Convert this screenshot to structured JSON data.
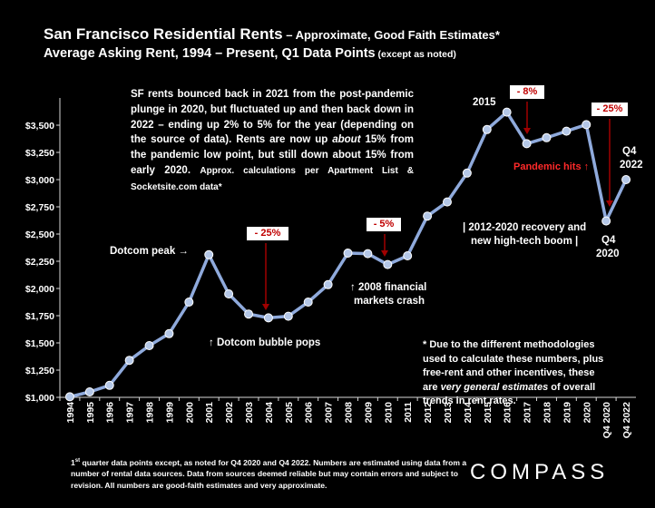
{
  "title": {
    "main": "San Francisco Residential Rents",
    "main_suffix": " – Approximate, Good Faith Estimates*",
    "second": "Average Asking Rent, 1994 – Present, Q1 Data Points",
    "second_note": " (except as noted)"
  },
  "chart_data": {
    "type": "line",
    "categories": [
      "1994",
      "1995",
      "1996",
      "1997",
      "1998",
      "1999",
      "2000",
      "2001",
      "2002",
      "2003",
      "2004",
      "2005",
      "2006",
      "2007",
      "2008",
      "2009",
      "2010",
      "2011",
      "2012",
      "2013",
      "2014",
      "2015",
      "2016",
      "2017",
      "2018",
      "2019",
      "2020",
      "Q4 2020",
      "Q4 2022"
    ],
    "values": [
      1005,
      1050,
      1110,
      1340,
      1475,
      1585,
      1875,
      2310,
      1950,
      1765,
      1730,
      1745,
      1875,
      2035,
      2325,
      2320,
      2220,
      2300,
      2665,
      2795,
      3060,
      3460,
      3620,
      3330,
      3385,
      3445,
      3505,
      2620,
      3000
    ],
    "ylim": [
      1000,
      3750
    ],
    "y_ticks": [
      "$1,000",
      "$1,250",
      "$1,500",
      "$1,750",
      "$2,000",
      "$2,250",
      "$2,500",
      "$2,750",
      "$3,000",
      "$3,250",
      "$3,500"
    ],
    "line_color": "#8faadc",
    "marker_color": "#b4c7e7"
  },
  "annotations": {
    "dotcom_peak": "Dotcom peak →",
    "dotcom_pops": "↑ Dotcom bubble pops",
    "financial_crash_1": "↑ 2008 financial",
    "financial_crash_2": "markets crash",
    "recovery_1": "| 2012-2020 recovery and",
    "recovery_2": "new high-tech boom |",
    "label_2015": "2015",
    "pandemic": "Pandemic hits ↑",
    "q4_2022_a": "Q4",
    "q4_2022_b": "2022",
    "q4_2020_a": "Q4",
    "q4_2020_b": "2020",
    "drop_25_a": "- 25%",
    "drop_5": "- 5%",
    "drop_8": "- 8%",
    "drop_25_b": "- 25%"
  },
  "paragraph": {
    "text": "SF rents bounced back in 2021 from the post-pandemic plunge in 2020, but fluctuated up and then back down in 2022 – ending up 2% to 5% for the year (depending on the source of data). Rents are now up ",
    "italic": "about",
    "text2": " 15% from the pandemic low point, but still down about 15% from early 2020. ",
    "small": "Approx. calculations per Apartment List & Socketsite.com data*"
  },
  "methodology": {
    "text": "* Due to the different methodologies used to calculate these numbers, plus free-rent and other incentives, these are ",
    "italic": "very general estimates",
    "text2": " of overall trends in rent rates."
  },
  "footnote": {
    "sup_1": "1",
    "sup_st": "st",
    "text": " quarter data points except, as noted for Q4 2020 and Q4 2022. Numbers are estimated using data from a number of rental data sources. Data from sources deemed reliable but may contain errors and subject to revision. All numbers are good-faith estimates and very approximate."
  },
  "brand": {
    "logo": "COMPASS"
  },
  "colors": {
    "background": "#000000",
    "accent_red": "#c00000",
    "arrow_red": "#a00000"
  }
}
